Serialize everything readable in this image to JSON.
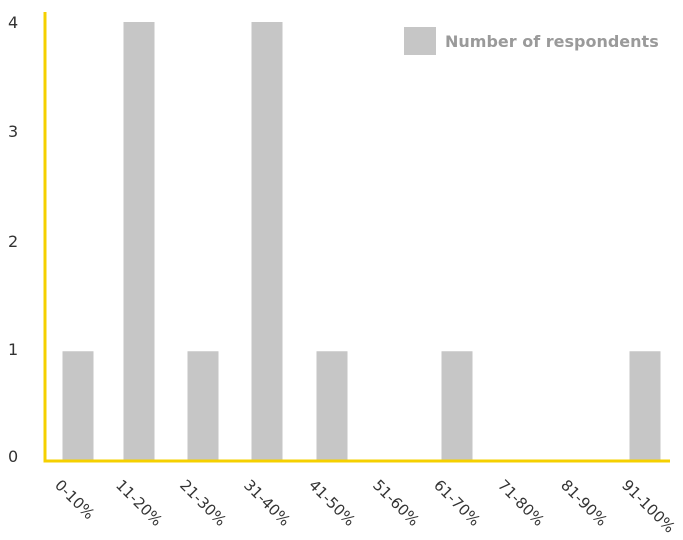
{
  "chart_data": {
    "type": "bar",
    "categories": [
      "0-10%",
      "11-20%",
      "21-30%",
      "31-40%",
      "41-50%",
      "51-60%",
      "61-70%",
      "71-80%",
      "81-90%",
      "91-100%"
    ],
    "series": [
      {
        "name": "Number of respondents",
        "values": [
          1,
          4,
          1,
          4,
          1,
          0,
          1,
          0,
          0,
          1
        ]
      }
    ],
    "yticks": [
      0,
      1,
      2,
      3,
      4
    ],
    "ylim": [
      0,
      4
    ],
    "xlabel": "",
    "ylabel": "",
    "title": "",
    "legend_position": "top-right",
    "grid": false,
    "colors": {
      "bar": "#c6c6c6",
      "axis": "#f5d000",
      "text": "#333333",
      "legend_text": "#9a9a9a"
    }
  }
}
